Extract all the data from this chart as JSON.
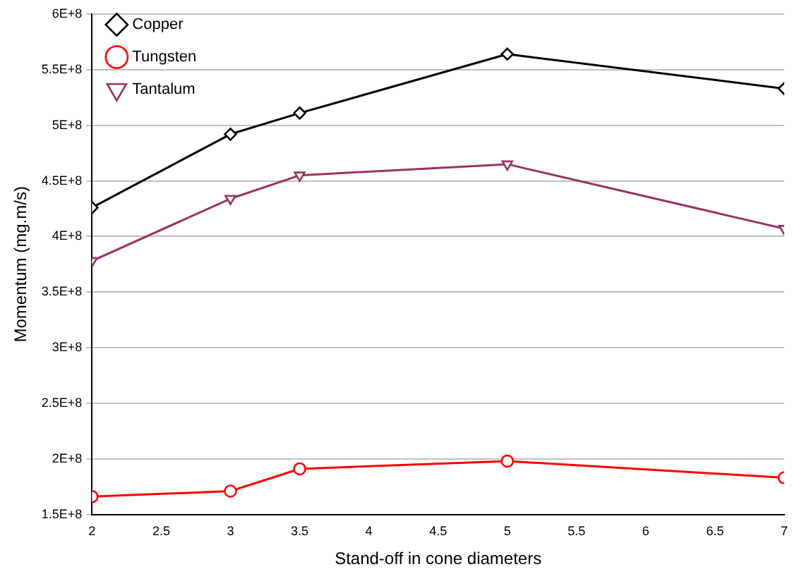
{
  "chart_data": {
    "type": "line",
    "xlabel": "Stand-off in cone diameters",
    "ylabel": "Momentum (mg.m/s)",
    "xlim": [
      2,
      7
    ],
    "xticks": [
      2,
      2.5,
      3,
      3.5,
      4,
      4.5,
      5,
      5.5,
      6,
      6.5,
      7
    ],
    "ylim": [
      150000000,
      600000000
    ],
    "yticks": [
      {
        "value": 150000000,
        "label": "1.5E+8"
      },
      {
        "value": 200000000,
        "label": "2E+8"
      },
      {
        "value": 250000000,
        "label": "2.5E+8"
      },
      {
        "value": 300000000,
        "label": "3E+8"
      },
      {
        "value": 350000000,
        "label": "3.5E+8"
      },
      {
        "value": 400000000,
        "label": "4E+8"
      },
      {
        "value": 450000000,
        "label": "4.5E+8"
      },
      {
        "value": 500000000,
        "label": "5E+8"
      },
      {
        "value": 550000000,
        "label": "5.5E+8"
      },
      {
        "value": 600000000,
        "label": "6E+8"
      }
    ],
    "x": [
      2,
      3,
      3.5,
      5,
      7
    ],
    "series": [
      {
        "name": "Copper",
        "color": "#000000",
        "marker": "diamond",
        "values": [
          426000000,
          492000000,
          511000000,
          564000000,
          533000000
        ]
      },
      {
        "name": "Tungsten",
        "color": "#ff0000",
        "marker": "circle",
        "values": [
          166000000,
          171000000,
          191000000,
          198000000,
          183000000
        ]
      },
      {
        "name": "Tantalum",
        "color": "#993366",
        "marker": "triangle",
        "values": [
          378000000,
          434000000,
          455000000,
          465000000,
          407000000
        ]
      }
    ],
    "grid": "y",
    "legend": "top left",
    "line_style": "solid"
  }
}
